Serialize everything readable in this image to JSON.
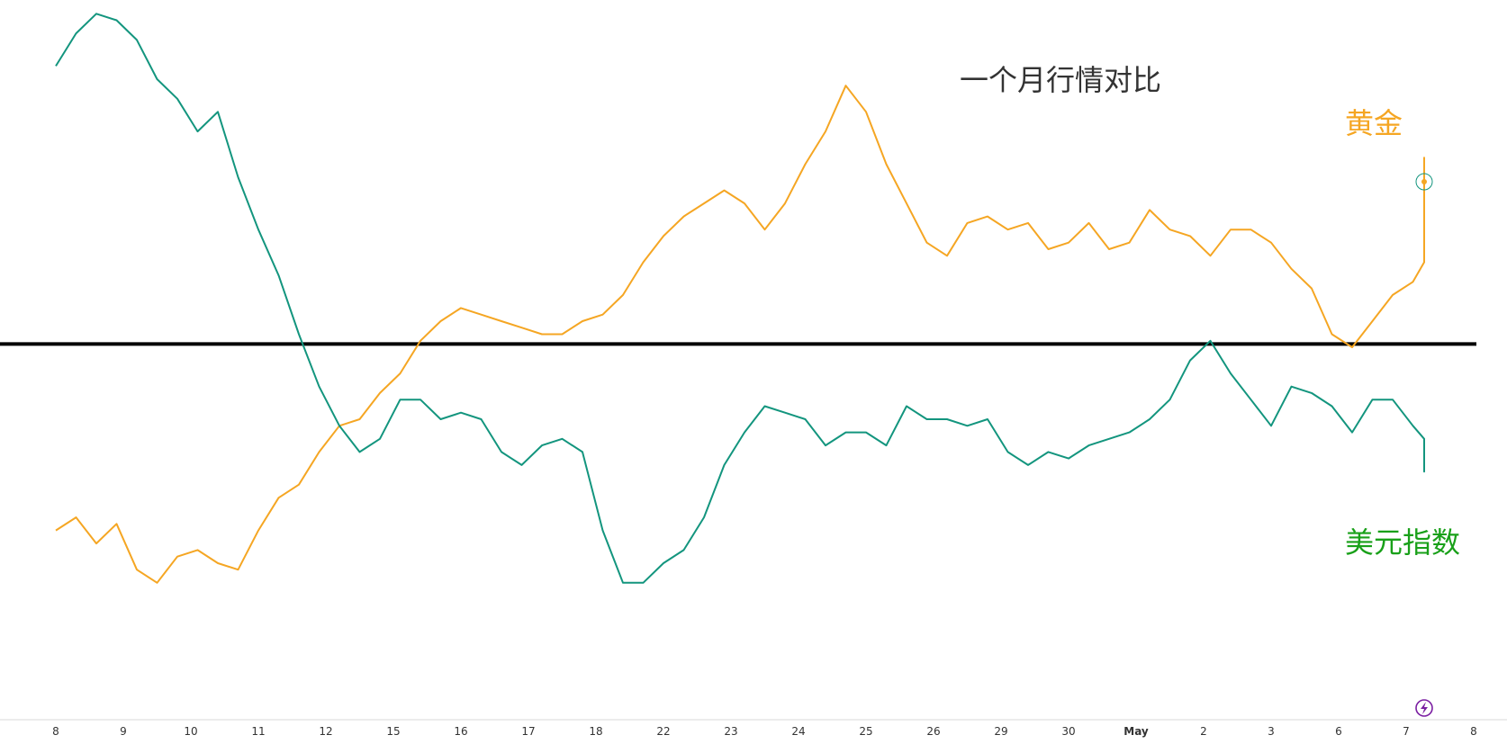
{
  "chart_data": {
    "type": "line",
    "title": "一个月行情对比",
    "x_ticks": [
      "8",
      "9",
      "10",
      "11",
      "12",
      "15",
      "16",
      "17",
      "18",
      "22",
      "23",
      "24",
      "25",
      "26",
      "29",
      "30",
      "May",
      "2",
      "3",
      "6",
      "7",
      "8"
    ],
    "x_tick_bold": "May",
    "ylim": [
      0,
      100
    ],
    "reference_line": {
      "y": 48.5,
      "color": "#000000"
    },
    "series": [
      {
        "name": "黄金",
        "color": "#f5a623",
        "x": [
          0,
          0.3,
          0.6,
          0.9,
          1.2,
          1.5,
          1.8,
          2.1,
          2.4,
          2.7,
          3.0,
          3.3,
          3.6,
          3.9,
          4.2,
          4.5,
          4.8,
          5.1,
          5.4,
          5.7,
          6.0,
          6.3,
          6.6,
          6.9,
          7.2,
          7.5,
          7.8,
          8.1,
          8.4,
          8.7,
          9.0,
          9.3,
          9.6,
          9.9,
          10.2,
          10.5,
          10.8,
          11.1,
          11.4,
          11.7,
          12.0,
          12.3,
          12.6,
          12.9,
          13.2,
          13.5,
          13.8,
          14.1,
          14.4,
          14.7,
          15.0,
          15.3,
          15.6,
          15.9,
          16.2,
          16.5,
          16.8,
          17.1,
          17.4,
          17.7,
          18.0,
          18.3,
          18.6,
          18.9,
          19.2,
          19.5,
          19.8,
          20.1,
          20.4,
          20.6,
          20.8,
          21.0,
          21.3
        ],
        "values": [
          20,
          22,
          18,
          21,
          14,
          12,
          16,
          17,
          15,
          14,
          20,
          25,
          27,
          32,
          36,
          37,
          41,
          44,
          49,
          52,
          54,
          53,
          52,
          51,
          50,
          50,
          52,
          53,
          56,
          61,
          65,
          68,
          70,
          72,
          70,
          66,
          70,
          76,
          81,
          88,
          84,
          76,
          70,
          64,
          62,
          67,
          68,
          66,
          67,
          63,
          64,
          67,
          63,
          64,
          69,
          66,
          65,
          62,
          66,
          66,
          64,
          60,
          57,
          50,
          48,
          52,
          56,
          58,
          61,
          68,
          71,
          77,
          72
        ]
      },
      {
        "name": "美元指数",
        "color": "#13957e",
        "x": [
          0,
          0.3,
          0.6,
          0.9,
          1.2,
          1.5,
          1.8,
          2.1,
          2.4,
          2.7,
          3.0,
          3.3,
          3.6,
          3.9,
          4.2,
          4.5,
          4.8,
          5.1,
          5.4,
          5.7,
          6.0,
          6.3,
          6.6,
          6.9,
          7.2,
          7.5,
          7.8,
          8.1,
          8.4,
          8.7,
          9.0,
          9.3,
          9.6,
          9.9,
          10.2,
          10.5,
          10.8,
          11.1,
          11.4,
          11.7,
          12.0,
          12.3,
          12.6,
          12.9,
          13.2,
          13.5,
          13.8,
          14.1,
          14.4,
          14.7,
          15.0,
          15.3,
          15.6,
          15.9,
          16.2,
          16.5,
          16.8,
          17.1,
          17.4,
          17.7,
          18.0,
          18.3,
          18.6,
          18.9,
          19.2,
          19.5,
          19.8,
          20.1,
          20.4,
          20.6,
          20.8,
          21.0,
          21.3
        ],
        "values": [
          91,
          96,
          99,
          98,
          95,
          89,
          86,
          81,
          84,
          74,
          66,
          59,
          50,
          42,
          36,
          32,
          34,
          40,
          40,
          37,
          38,
          37,
          32,
          30,
          33,
          34,
          32,
          20,
          12,
          12,
          15,
          17,
          22,
          30,
          35,
          39,
          38,
          37,
          33,
          35,
          35,
          33,
          39,
          37,
          37,
          36,
          37,
          32,
          30,
          32,
          31,
          33,
          34,
          35,
          37,
          40,
          46,
          49,
          44,
          40,
          36,
          42,
          41,
          39,
          35,
          40,
          40,
          36,
          34,
          30,
          29,
          30,
          32
        ]
      }
    ]
  }
}
